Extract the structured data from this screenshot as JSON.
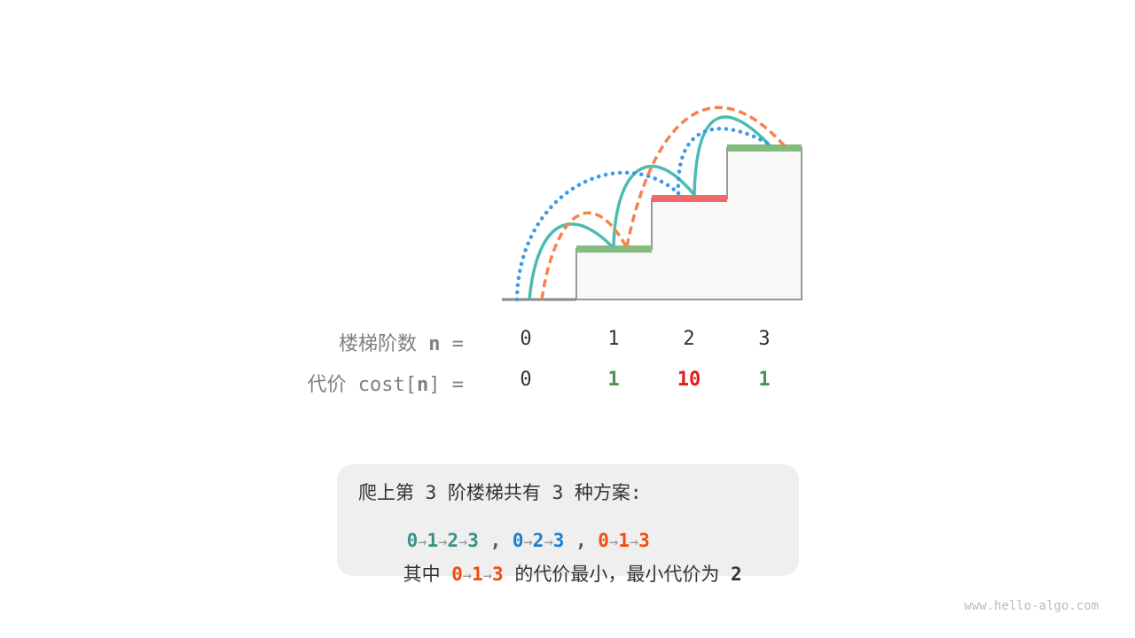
{
  "stairs": {
    "bar_colors": {
      "cheap": "#85bb7e",
      "expensive": "#ee6969"
    },
    "path_colors": {
      "0-1-2-3": "#4bbcaf",
      "0-2-3": "#3c9ae6",
      "0-1-3": "#f5834f"
    }
  },
  "steps_row": {
    "label": "楼梯阶数 ",
    "var": "n",
    "eq": " =",
    "values": [
      "0",
      "1",
      "2",
      "3"
    ]
  },
  "cost_row": {
    "label": "代价 cost[",
    "var": "n",
    "close": "] =",
    "values": [
      "0",
      "1",
      "10",
      "1"
    ],
    "colors": [
      "#333333",
      "#4d9150",
      "#e31a1a",
      "#4d9150"
    ]
  },
  "summary": {
    "line1": "爬上第 3 阶楼梯共有 3 种方案:",
    "paths": [
      [
        "0",
        "1",
        "2",
        "3"
      ],
      [
        "0",
        "2",
        "3"
      ],
      [
        "0",
        "1",
        "3"
      ]
    ],
    "sep": " , ",
    "arrow": "→",
    "line3_prefix": "其中 ",
    "best_path": [
      "0",
      "1",
      "3"
    ],
    "line3_suffix": " 的代价最小，最小代价为 ",
    "min_cost": "2"
  },
  "watermark": "www.hello-algo.com"
}
